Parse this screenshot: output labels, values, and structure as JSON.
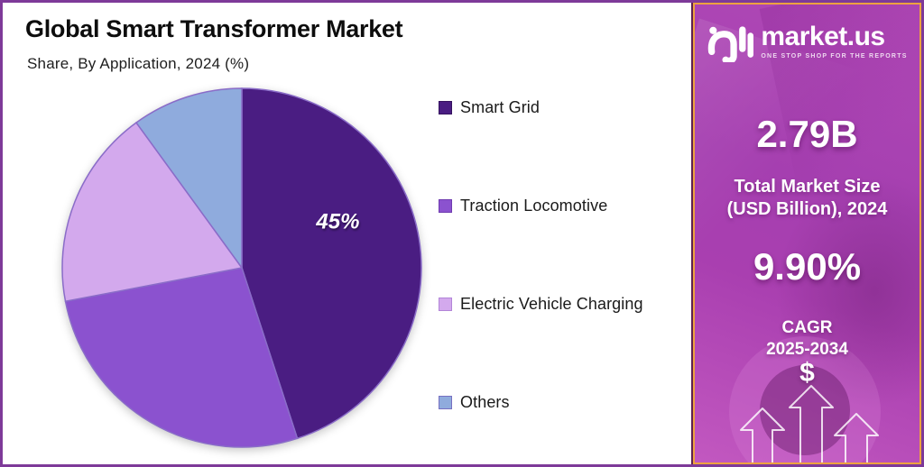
{
  "header": {
    "title": "Global Smart Transformer Market",
    "subtitle": "Share, By Application, 2024 (%)"
  },
  "chart_data": {
    "type": "pie",
    "title": "Global Smart Transformer Market",
    "subtitle": "Share, By Application, 2024 (%)",
    "unit": "%",
    "start_angle_deg": 0,
    "direction": "clockwise",
    "legend_position": "right",
    "slice_stroke": "#8a6cc8",
    "slices": [
      {
        "label": "Smart Grid",
        "value": 45,
        "display_value": "45%",
        "color": "#4a1d82",
        "legend_border": "#35125f",
        "label_angle_deg": 65,
        "label_radius_frac": 0.59
      },
      {
        "label": "Traction Locomotive",
        "value": 27,
        "color": "#8b52cf",
        "legend_border": "#6f3bb0"
      },
      {
        "label": "Electric Vehicle Charging",
        "value": 18,
        "color": "#d3a9ed",
        "legend_border": "#b285d8"
      },
      {
        "label": "Others",
        "value": 10,
        "color": "#8fabdd",
        "legend_border": "#7770c1"
      }
    ]
  },
  "sidebar": {
    "logo_name": "market.us",
    "logo_tagline": "ONE STOP SHOP FOR THE REPORTS",
    "market_size_value": "2.79B",
    "market_size_label_line1": "Total Market Size",
    "market_size_label_line2": "(USD Billion), 2024",
    "cagr_value": "9.90%",
    "cagr_label_line1": "CAGR",
    "cagr_label_line2": "2025-2034",
    "currency_symbol": "$"
  },
  "colors": {
    "outer_border": "#7e3a99",
    "panel_border": "#eda23f",
    "panel_magenta": "#a93fb0",
    "title_text": "#0d0d0d",
    "slice_label_text": "#ffffff"
  }
}
